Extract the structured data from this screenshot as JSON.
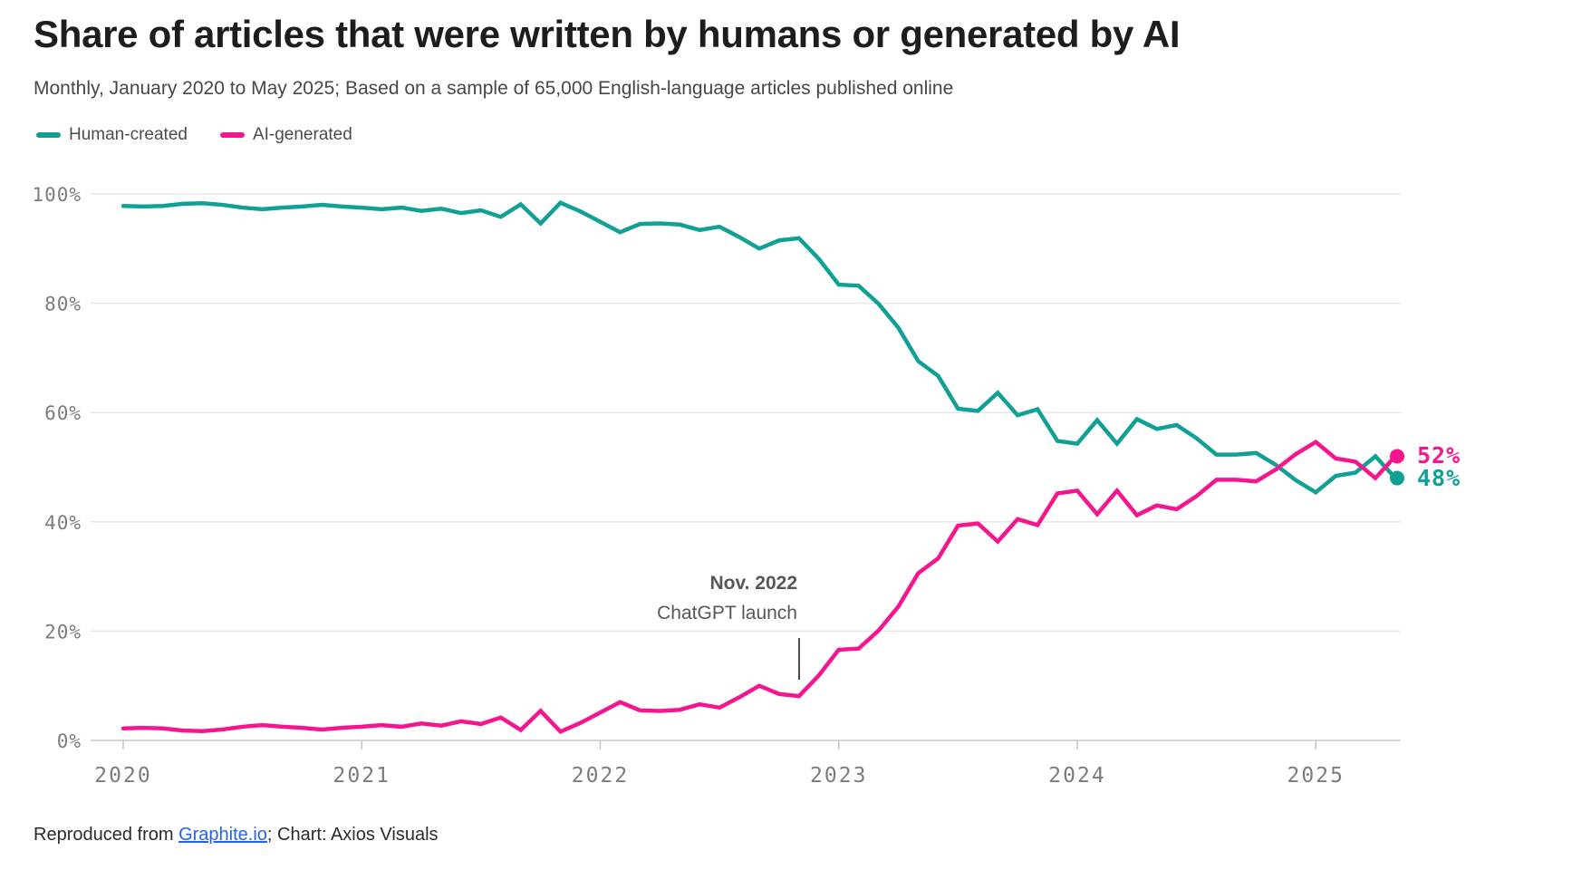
{
  "page": {
    "title": "Share of articles that were written by humans or generated by AI",
    "subtitle": "Monthly, January 2020 to May 2025; Based on a sample of 65,000 English-language articles published online"
  },
  "legend": [
    {
      "label": "Human-created",
      "color": "#10a096"
    },
    {
      "label": "AI-generated",
      "color": "#f5168f"
    }
  ],
  "footer": {
    "prefix": "Reproduced from ",
    "link_text": "Graphite.io",
    "suffix": "; Chart: Axios Visuals"
  },
  "chart_data": {
    "type": "line",
    "title": "Share of articles that were written by humans or generated by AI",
    "x_unit": "month",
    "x_start": "2020-01",
    "x_end": "2025-05",
    "ylim": [
      0,
      100
    ],
    "grid": "horizontal",
    "legend_position": "top-left",
    "y_tick_values": [
      0,
      20,
      40,
      60,
      80,
      100
    ],
    "y_tick_labels": [
      "0%",
      "20%",
      "40%",
      "60%",
      "80%",
      "100%"
    ],
    "x_tick_month_indices": [
      0,
      12,
      24,
      36,
      48,
      60
    ],
    "x_tick_labels": [
      "2020",
      "2021",
      "2022",
      "2023",
      "2024",
      "2025"
    ],
    "annotation": {
      "line1": "Nov. 2022",
      "line2": "ChatGPT launch",
      "month": "2022-11",
      "month_index": 34
    },
    "series": [
      {
        "name": "Human-created",
        "color": "#10a096",
        "end_label": "48%",
        "end_value": 48,
        "values": [
          97.8,
          97.7,
          97.8,
          98.2,
          98.3,
          98.0,
          97.5,
          97.2,
          97.5,
          97.7,
          98.0,
          97.7,
          97.5,
          97.2,
          97.5,
          96.9,
          97.3,
          96.5,
          97.0,
          95.8,
          98.1,
          94.6,
          98.4,
          96.8,
          94.9,
          93.0,
          94.5,
          94.6,
          94.4,
          93.4,
          94.0,
          92.1,
          90.0,
          91.5,
          91.9,
          88.1,
          83.4,
          83.2,
          79.9,
          75.5,
          69.4,
          66.7,
          60.7,
          60.3,
          63.6,
          59.5,
          60.6,
          54.8,
          54.3,
          58.6,
          54.3,
          58.8,
          57.0,
          57.7,
          55.3,
          52.3,
          52.3,
          52.6,
          50.4,
          47.6,
          45.4,
          48.4,
          49.0,
          52.0,
          48.0
        ]
      },
      {
        "name": "AI-generated",
        "color": "#f5168f",
        "end_label": "52%",
        "end_value": 52,
        "values": [
          2.2,
          2.3,
          2.2,
          1.8,
          1.7,
          2.0,
          2.5,
          2.8,
          2.5,
          2.3,
          2.0,
          2.3,
          2.5,
          2.8,
          2.5,
          3.1,
          2.7,
          3.5,
          3.0,
          4.2,
          1.9,
          5.4,
          1.6,
          3.2,
          5.1,
          7.0,
          5.5,
          5.4,
          5.6,
          6.6,
          6.0,
          7.9,
          10.0,
          8.5,
          8.1,
          11.9,
          16.6,
          16.8,
          20.1,
          24.5,
          30.6,
          33.3,
          39.3,
          39.7,
          36.4,
          40.5,
          39.4,
          45.2,
          45.7,
          41.4,
          45.7,
          41.2,
          43.0,
          42.3,
          44.7,
          47.7,
          47.7,
          47.4,
          49.6,
          52.4,
          54.6,
          51.6,
          51.0,
          48.0,
          52.0
        ]
      }
    ]
  }
}
